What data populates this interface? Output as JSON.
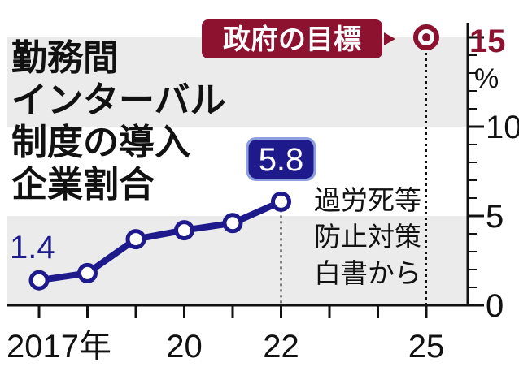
{
  "chart_data": {
    "type": "line",
    "title_lines": [
      "勤務間",
      "インターバル",
      "制度の導入",
      "企業割合"
    ],
    "x_labels": [
      "2017年",
      "20",
      "22",
      "25"
    ],
    "x_range": [
      2017,
      2025
    ],
    "y_ticks": [
      "0",
      "5",
      "10",
      "15"
    ],
    "y_unit": "%",
    "ylim": [
      0,
      15
    ],
    "series": [
      {
        "x": [
          2017,
          2018,
          2019,
          2020,
          2021,
          2022
        ],
        "values": [
          1.4,
          1.8,
          3.7,
          4.2,
          4.6,
          5.8
        ]
      }
    ],
    "label_first": "1.4",
    "label_last": "5.8",
    "target": {
      "x": 2025,
      "value": 15,
      "label": "政府の目標",
      "value_label": "15"
    },
    "source_lines": [
      "過労死等",
      "防止対策",
      "白書から"
    ],
    "bands": [
      [
        0,
        5
      ],
      [
        10,
        15
      ]
    ]
  },
  "colors": {
    "series": "#1f1a8c",
    "target": "#8c1230",
    "band": "#ebebeb",
    "axis": "#111111",
    "label_bg": "#1f1a8c",
    "label_halo": "#8fa0e0"
  }
}
